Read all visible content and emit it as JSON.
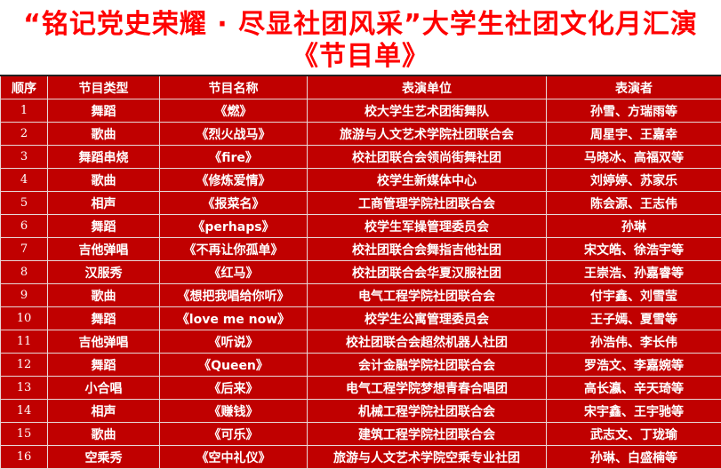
{
  "title_line1": "“铭记党史荣耀 · 尽显社团风采”大学生社团文化月汇演",
  "title_line2": "《节目单》",
  "columns": [
    "顺序",
    "节目类型",
    "节目名称",
    "表演单位",
    "表演者"
  ],
  "rows": [
    [
      "1",
      "舞蹈",
      "《燃》",
      "校大学生艺术团街舞队",
      "孙雪、方瑞雨等"
    ],
    [
      "2",
      "歌曲",
      "《烈火战马》",
      "旅游与人文艺术学院社团联合会",
      "周星宇、王嘉幸"
    ],
    [
      "3",
      "舞蹈串烧",
      "《fire》",
      "校社团联合会领尚街舞社团",
      "马晓冰、高福双等"
    ],
    [
      "4",
      "歌曲",
      "《修炼爱情》",
      "校学生新媒体中心",
      "刘婷婷、苏家乐"
    ],
    [
      "5",
      "相声",
      "《报菜名》",
      "工商管理学院社团联合会",
      "陈会源、王志伟"
    ],
    [
      "6",
      "舞蹈",
      "《perhaps》",
      "校学生军操管理委员会",
      "孙琳"
    ],
    [
      "7",
      "吉他弹唱",
      "《不再让你孤单》",
      "校社团联合会舞指吉他社团",
      "宋文皓、徐浩宇等"
    ],
    [
      "8",
      "汉服秀",
      "《红马》",
      "校社团联合会华夏汉服社团",
      "王崇浩、孙嘉睿等"
    ],
    [
      "9",
      "歌曲",
      "《想把我唱给你听》",
      "电气工程学院社团联合会",
      "付宇鑫、刘雪莹"
    ],
    [
      "10",
      "舞蹈",
      "《love me now》",
      "校学生公寓管理委员会",
      "王子嫣、夏雪等"
    ],
    [
      "11",
      "吉他弹唱",
      "《听说》",
      "校社团联合会超然机器人社团",
      "孙浩伟、李长伟"
    ],
    [
      "12",
      "舞蹈",
      "《Queen》",
      "会计金融学院社团联合会",
      "罗浩文、李嘉婉等"
    ],
    [
      "13",
      "小合唱",
      "《后来》",
      "电气工程学院梦想青春合唱团",
      "高长瀛、辛天琦等"
    ],
    [
      "14",
      "相声",
      "《赚钱》",
      "机械工程学院社团联合会",
      "宋宇鑫、王宇驰等"
    ],
    [
      "15",
      "歌曲",
      "《可乐》",
      "建筑工程学院社团联合会",
      "武志文、丁珑瑜"
    ],
    [
      "16",
      "空乘秀",
      "《空中礼仪》",
      "旅游与人文艺术学院空乘专业社团",
      "孙琳、白盛楠等"
    ]
  ],
  "colors": {
    "title": "#ff0000",
    "table_bg": "#c00000",
    "table_text": "#ffffff"
  }
}
